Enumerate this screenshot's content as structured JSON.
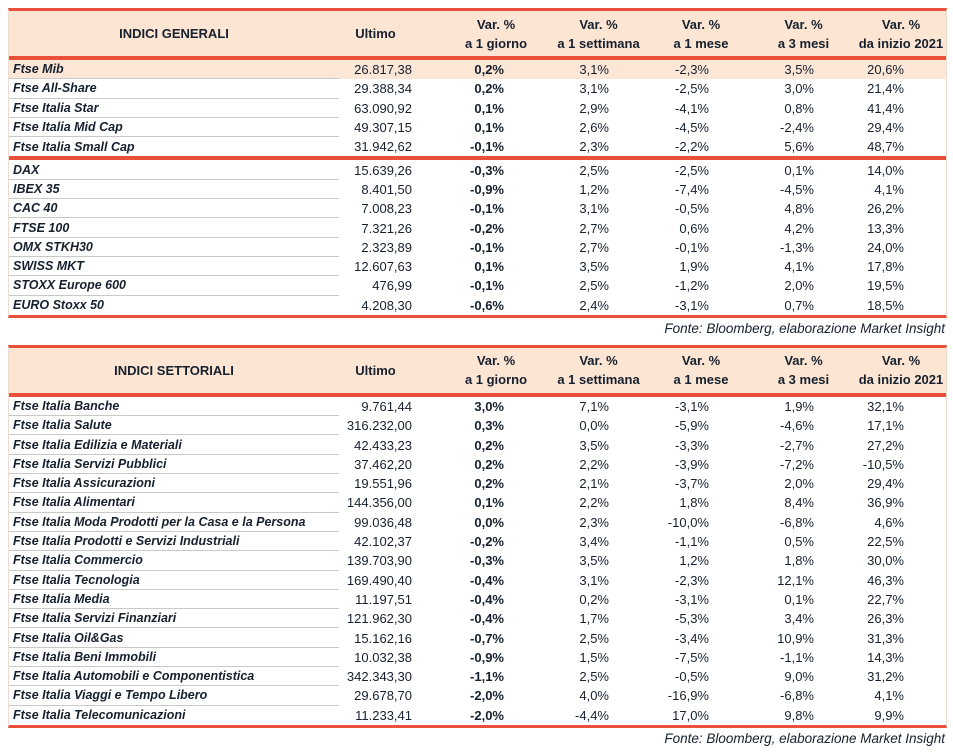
{
  "colors": {
    "accent_red": "#e9503a",
    "header_bg": "#fce5d3",
    "row_highlight_bg": "#fce7d7",
    "separator_gray": "#c9c9c9",
    "text": "#16202e"
  },
  "tables": [
    {
      "title": "INDICI GENERALI",
      "columns": {
        "ultimo": "Ultimo",
        "var_label": "Var. %",
        "periods": [
          "a 1 giorno",
          "a 1 settimana",
          "a 1 mese",
          "a 3 mesi",
          "da inizio 2021"
        ]
      },
      "highlight": {
        "section": 0,
        "row": 0
      },
      "sections": [
        {
          "rows": [
            [
              "Ftse Mib",
              "26.817,38",
              "0,2%",
              "3,1%",
              "-2,3%",
              "3,5%",
              "20,6%"
            ],
            [
              "Ftse All-Share",
              "29.388,34",
              "0,2%",
              "3,1%",
              "-2,5%",
              "3,0%",
              "21,4%"
            ],
            [
              "Ftse Italia Star",
              "63.090,92",
              "0,1%",
              "2,9%",
              "-4,1%",
              "0,8%",
              "41,4%"
            ],
            [
              "Ftse Italia Mid Cap",
              "49.307,15",
              "0,1%",
              "2,6%",
              "-4,5%",
              "-2,4%",
              "29,4%"
            ],
            [
              "Ftse Italia Small Cap",
              "31.942,62",
              "-0,1%",
              "2,3%",
              "-2,2%",
              "5,6%",
              "48,7%"
            ]
          ]
        },
        {
          "rows": [
            [
              "DAX",
              "15.639,26",
              "-0,3%",
              "2,5%",
              "-2,5%",
              "0,1%",
              "14,0%"
            ],
            [
              "IBEX 35",
              "8.401,50",
              "-0,9%",
              "1,2%",
              "-7,4%",
              "-4,5%",
              "4,1%"
            ],
            [
              "CAC 40",
              "7.008,23",
              "-0,1%",
              "3,1%",
              "-0,5%",
              "4,8%",
              "26,2%"
            ],
            [
              "FTSE 100",
              "7.321,26",
              "-0,2%",
              "2,7%",
              "0,6%",
              "4,2%",
              "13,3%"
            ],
            [
              "OMX STKH30",
              "2.323,89",
              "-0,1%",
              "2,7%",
              "-0,1%",
              "-1,3%",
              "24,0%"
            ],
            [
              "SWISS MKT",
              "12.607,63",
              "0,1%",
              "3,5%",
              "1,9%",
              "4,1%",
              "17,8%"
            ],
            [
              "STOXX Europe 600",
              "476,99",
              "-0,1%",
              "2,5%",
              "-1,2%",
              "2,0%",
              "19,5%"
            ],
            [
              "EURO Stoxx 50",
              "4.208,30",
              "-0,6%",
              "2,4%",
              "-3,1%",
              "0,7%",
              "18,5%"
            ]
          ]
        }
      ],
      "fonte": "Fonte: Bloomberg, elaborazione Market Insight"
    },
    {
      "title": "INDICI SETTORIALI",
      "columns": {
        "ultimo": "Ultimo",
        "var_label": "Var. %",
        "periods": [
          "a 1 giorno",
          "a 1 settimana",
          "a 1 mese",
          "a 3 mesi",
          "da inizio 2021"
        ]
      },
      "sections": [
        {
          "rows": [
            [
              "Ftse Italia Banche",
              "9.761,44",
              "3,0%",
              "7,1%",
              "-3,1%",
              "1,9%",
              "32,1%"
            ],
            [
              "Ftse Italia Salute",
              "316.232,00",
              "0,3%",
              "0,0%",
              "-5,9%",
              "-4,6%",
              "17,1%"
            ],
            [
              "Ftse Italia Edilizia e Materiali",
              "42.433,23",
              "0,2%",
              "3,5%",
              "-3,3%",
              "-2,7%",
              "27,2%"
            ],
            [
              "Ftse Italia Servizi Pubblici",
              "37.462,20",
              "0,2%",
              "2,2%",
              "-3,9%",
              "-7,2%",
              "-10,5%"
            ],
            [
              "Ftse Italia Assicurazioni",
              "19.551,96",
              "0,2%",
              "2,1%",
              "-3,7%",
              "2,0%",
              "29,4%"
            ],
            [
              "Ftse Italia Alimentari",
              "144.356,00",
              "0,1%",
              "2,2%",
              "1,8%",
              "8,4%",
              "36,9%"
            ],
            [
              "Ftse Italia Moda Prodotti per la Casa e la Persona",
              "99.036,48",
              "0,0%",
              "2,3%",
              "-10,0%",
              "-6,8%",
              "4,6%"
            ],
            [
              "Ftse Italia Prodotti e Servizi Industriali",
              "42.102,37",
              "-0,2%",
              "3,4%",
              "-1,1%",
              "0,5%",
              "22,5%"
            ],
            [
              "Ftse Italia Commercio",
              "139.703,90",
              "-0,3%",
              "3,5%",
              "1,2%",
              "1,8%",
              "30,0%"
            ],
            [
              "Ftse Italia Tecnologia",
              "169.490,40",
              "-0,4%",
              "3,1%",
              "-2,3%",
              "12,1%",
              "46,3%"
            ],
            [
              "Ftse Italia Media",
              "11.197,51",
              "-0,4%",
              "0,2%",
              "-3,1%",
              "0,1%",
              "22,7%"
            ],
            [
              "Ftse Italia Servizi Finanziari",
              "121.962,30",
              "-0,4%",
              "1,7%",
              "-5,3%",
              "3,4%",
              "26,3%"
            ],
            [
              "Ftse Italia Oil&Gas",
              "15.162,16",
              "-0,7%",
              "2,5%",
              "-3,4%",
              "10,9%",
              "31,3%"
            ],
            [
              "Ftse Italia Beni Immobili",
              "10.032,38",
              "-0,9%",
              "1,5%",
              "-7,5%",
              "-1,1%",
              "14,3%"
            ],
            [
              "Ftse Italia Automobili e Componentistica",
              "342.343,30",
              "-1,1%",
              "2,5%",
              "-0,5%",
              "9,0%",
              "31,2%"
            ],
            [
              "Ftse Italia Viaggi e Tempo Libero",
              "29.678,70",
              "-2,0%",
              "4,0%",
              "-16,9%",
              "-6,8%",
              "4,1%"
            ],
            [
              "Ftse Italia Telecomunicazioni",
              "11.233,41",
              "-2,0%",
              "-4,4%",
              "17,0%",
              "9,8%",
              "9,9%"
            ]
          ]
        }
      ],
      "fonte": "Fonte: Bloomberg, elaborazione Market Insight"
    }
  ]
}
